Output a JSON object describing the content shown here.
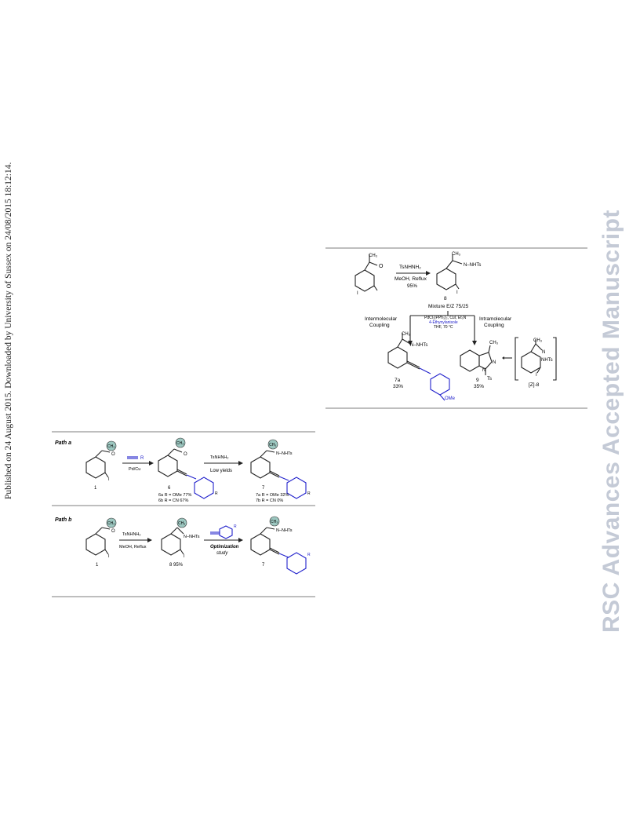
{
  "sidebar": {
    "text": "Published on 24 August 2015. Downloaded by University of Sussex on 24/08/2015 18:12:14."
  },
  "watermark": {
    "text": "RSC Advances Accepted Manuscript"
  },
  "scheme_right": {
    "methyl_ketone": "CH₃",
    "oxygen": "O",
    "iodo_start": "I",
    "reagent_top": "TsNHNH₂",
    "reagent_bottom": "MeOH, Reflux",
    "yield_hydrazone": "95%",
    "hydrazone_methyl": "CH₃",
    "hydrazone_group": "N–NHTs",
    "iodo_hydrazone": "I",
    "compound_8": "8",
    "mixture": "Mixture E/Z 75/25",
    "conditions_line1": "PdCl₂(PPh₃)₂, CuI, Et₃N",
    "conditions_line2": "4-Ethynylanisole",
    "conditions_line3": "THF, 70 °C",
    "left_path_line1": "Intermolecular",
    "left_path_line2": "Coupling",
    "right_path_line1": "Intramolecular",
    "right_path_line2": "Coupling",
    "product_methyl": "CH₃",
    "product_group": "N–NHTs",
    "product_ome": "OMe",
    "compound_7a": "7a",
    "yield_7a": "33%",
    "indazole_methyl": "CH₃",
    "indazole_n2": "N",
    "indazole_n1": "N",
    "indazole_ts": "Ts",
    "compound_9": "9",
    "yield_9": "35%",
    "int_methyl": "CH₃",
    "int_n": "N",
    "int_nhts": "NHTs",
    "int_iodo": "I",
    "int_label": "[Z]-8"
  },
  "scheme_left": {
    "path_a_label": "Path a",
    "path_b_label": "Path b",
    "ch3_badge": "CH₃",
    "oxygen": "O",
    "iodo": "I",
    "alkyne_r": "R",
    "catalyst": "Pd/Cu",
    "compound_1": "1",
    "compound_6": "6",
    "yield_6a": "6a R = OMe 77%",
    "yield_6b": "6b R = CN   67%",
    "reagent_a": "TsNHNH₂",
    "note_a": "Low yields",
    "r_label": "R",
    "nhts": "N–NHTs",
    "compound_7": "7",
    "yield_7a": "7a R = OMe  32%",
    "yield_7b": "7b R = CN   0%",
    "reagent_b1": "TsNHNH₂",
    "reagent_b2": "MeOH, Reflux",
    "nnhts_b": "N–NHTs",
    "yield_8": "8  95%",
    "optimization_1": "Optimization",
    "optimization_2": "study",
    "compound_1b": "1",
    "compound_7b": "7"
  }
}
